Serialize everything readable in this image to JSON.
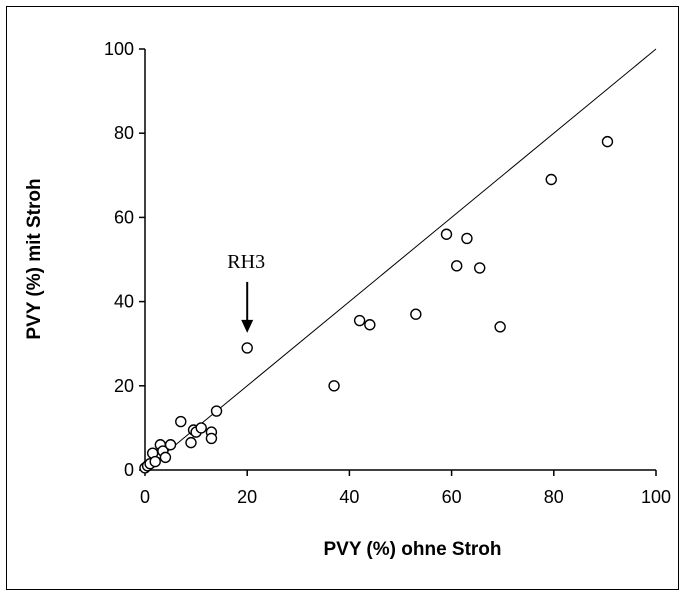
{
  "chart_data": {
    "type": "scatter",
    "title": "",
    "xlabel": "PVY (%) ohne Stroh",
    "ylabel": "PVY (%) mit Stroh",
    "xlim": [
      0,
      100
    ],
    "ylim": [
      0,
      100
    ],
    "x_ticks": [
      "0",
      "20",
      "40",
      "60",
      "80",
      "100"
    ],
    "y_ticks": [
      "0",
      "20",
      "40",
      "60",
      "80",
      "100"
    ],
    "grid": false,
    "legend": "none",
    "reference_line": {
      "type": "y=x",
      "from": [
        0,
        0
      ],
      "to": [
        100,
        100
      ]
    },
    "annotation": {
      "text": "RH3",
      "x": 20,
      "y": 29,
      "arrow": "down"
    },
    "points": [
      {
        "x": 0,
        "y": 0.5
      },
      {
        "x": 0.5,
        "y": 1
      },
      {
        "x": 1,
        "y": 1.5
      },
      {
        "x": 1.5,
        "y": 4
      },
      {
        "x": 2,
        "y": 2
      },
      {
        "x": 3,
        "y": 6
      },
      {
        "x": 3.5,
        "y": 4.5
      },
      {
        "x": 4,
        "y": 3
      },
      {
        "x": 5,
        "y": 6
      },
      {
        "x": 7,
        "y": 11.5
      },
      {
        "x": 9,
        "y": 6.5
      },
      {
        "x": 9.5,
        "y": 9.5
      },
      {
        "x": 10,
        "y": 9
      },
      {
        "x": 11,
        "y": 10
      },
      {
        "x": 13,
        "y": 9
      },
      {
        "x": 13,
        "y": 7.5
      },
      {
        "x": 14,
        "y": 14
      },
      {
        "x": 20,
        "y": 29
      },
      {
        "x": 37,
        "y": 20
      },
      {
        "x": 42,
        "y": 35.5
      },
      {
        "x": 44,
        "y": 34.5
      },
      {
        "x": 53,
        "y": 37
      },
      {
        "x": 59,
        "y": 56
      },
      {
        "x": 61,
        "y": 48.5
      },
      {
        "x": 63,
        "y": 55
      },
      {
        "x": 65.5,
        "y": 48
      },
      {
        "x": 69.5,
        "y": 34
      },
      {
        "x": 79.5,
        "y": 69
      },
      {
        "x": 90.5,
        "y": 78
      }
    ]
  }
}
